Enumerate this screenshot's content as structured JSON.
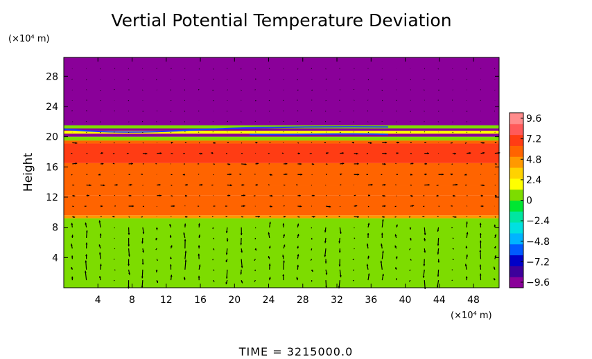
{
  "chart_data": {
    "type": "heatmap",
    "title": "Vertial Potential Temperature Deviation",
    "ylabel": "Height",
    "xlabel": "",
    "y_unit": "(×10⁴ m)",
    "x_unit": "(×10⁴ m)",
    "x_ticks": [
      4,
      8,
      12,
      16,
      20,
      24,
      28,
      32,
      36,
      40,
      44,
      48
    ],
    "y_ticks": [
      4,
      8,
      12,
      16,
      20,
      24,
      28
    ],
    "xlim": [
      0,
      51
    ],
    "ylim": [
      0,
      30.5
    ],
    "grid": false,
    "colorbar": {
      "ticks": [
        "9.6",
        "7.2",
        "4.8",
        "2.4",
        "0",
        "−2.4",
        "−4.8",
        "−7.2",
        "−9.6"
      ],
      "range": [
        -10.8,
        10.8
      ],
      "colors": [
        "#8a0099",
        "#3d009b",
        "#0000c8",
        "#005aff",
        "#00b4ff",
        "#00e0e0",
        "#00e6a0",
        "#00e632",
        "#7ddc00",
        "#ffff00",
        "#ffd200",
        "#ff9900",
        "#ff6400",
        "#ff3c14",
        "#ff5a5a",
        "#ff8c8c"
      ]
    },
    "layers": [
      {
        "y0": 0,
        "y1": 9.2,
        "value": 0.6
      },
      {
        "y0": 9.2,
        "y1": 9.6,
        "value": 4.8
      },
      {
        "y0": 9.6,
        "y1": 12.2,
        "value": 6.0
      },
      {
        "y0": 12.2,
        "y1": 13.6,
        "value": 6.6
      },
      {
        "y0": 13.6,
        "y1": 16.5,
        "value": 6.2
      },
      {
        "y0": 16.5,
        "y1": 19.1,
        "value": 7.4
      },
      {
        "y0": 19.1,
        "y1": 19.5,
        "value": 6.0
      },
      {
        "y0": 19.5,
        "y1": 20.0,
        "value": 1.2
      },
      {
        "y0": 20.0,
        "y1": 30.5,
        "value": -10.6
      }
    ],
    "anomalies": [
      {
        "x0": 0,
        "x1": 51,
        "y0": 20.4,
        "y1": 20.8,
        "value": 1.5
      },
      {
        "x0": 0,
        "x1": 51,
        "y0": 21.1,
        "y1": 21.5,
        "value": 0.9
      }
    ],
    "time_label": "TIME  =  3215000.0"
  }
}
